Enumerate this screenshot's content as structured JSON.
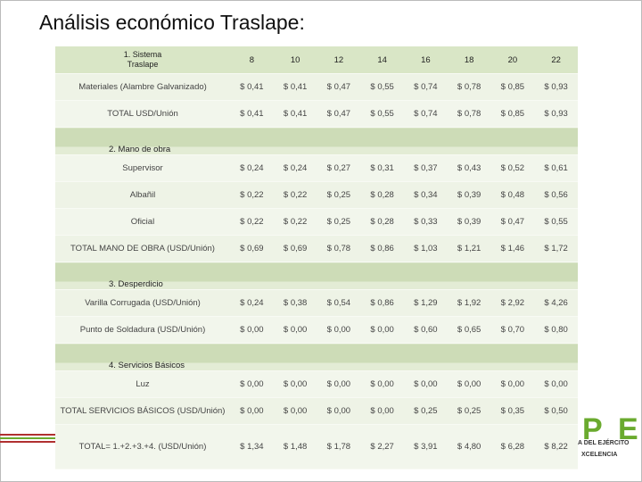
{
  "title": "Análisis económico Traslape:",
  "table": {
    "header": [
      "1. Sistema Traslape",
      "8",
      "10",
      "12",
      "14",
      "16",
      "18",
      "20",
      "22"
    ],
    "rows": [
      {
        "label": "Materiales (Alambre Galvanizado)",
        "cells": [
          "$ 0,41",
          "$ 0,41",
          "$ 0,47",
          "$ 0,55",
          "$ 0,74",
          "$ 0,78",
          "$ 0,85",
          "$ 0,93"
        ]
      },
      {
        "label": "TOTAL USD/Unión",
        "cells": [
          "$ 0,41",
          "$ 0,41",
          "$ 0,47",
          "$ 0,55",
          "$ 0,74",
          "$ 0,78",
          "$ 0,85",
          "$ 0,93"
        ]
      },
      {
        "section": "2. Mano de obra"
      },
      {
        "label": "Supervisor",
        "cells": [
          "$ 0,24",
          "$ 0,24",
          "$ 0,27",
          "$ 0,31",
          "$ 0,37",
          "$ 0,43",
          "$ 0,52",
          "$ 0,61"
        ]
      },
      {
        "label": "Albañil",
        "cells": [
          "$ 0,22",
          "$ 0,22",
          "$ 0,25",
          "$ 0,28",
          "$ 0,34",
          "$ 0,39",
          "$ 0,48",
          "$ 0,56"
        ]
      },
      {
        "label": "Oficial",
        "cells": [
          "$ 0,22",
          "$ 0,22",
          "$ 0,25",
          "$ 0,28",
          "$ 0,33",
          "$ 0,39",
          "$ 0,47",
          "$ 0,55"
        ]
      },
      {
        "label": "TOTAL MANO DE OBRA (USD/Unión)",
        "cells": [
          "$ 0,69",
          "$ 0,69",
          "$ 0,78",
          "$ 0,86",
          "$ 1,03",
          "$ 1,21",
          "$ 1,46",
          "$ 1,72"
        ]
      },
      {
        "section": "3. Desperdicio"
      },
      {
        "label": "Varilla Corrugada (USD/Unión)",
        "cells": [
          "$ 0,24",
          "$ 0,38",
          "$ 0,54",
          "$ 0,86",
          "$ 1,29",
          "$ 1,92",
          "$ 2,92",
          "$ 4,26"
        ]
      },
      {
        "label": "Punto de Soldadura (USD/Unión)",
        "cells": [
          "$ 0,00",
          "$ 0,00",
          "$ 0,00",
          "$ 0,00",
          "$ 0,60",
          "$ 0,65",
          "$ 0,70",
          "$ 0,80"
        ]
      },
      {
        "section": "4. Servicios Básicos"
      },
      {
        "label": "Luz",
        "cells": [
          "$ 0,00",
          "$ 0,00",
          "$ 0,00",
          "$ 0,00",
          "$ 0,00",
          "$ 0,00",
          "$ 0,00",
          "$ 0,00"
        ]
      },
      {
        "label": "TOTAL SERVICIOS BÁSICOS (USD/Unión)",
        "cells": [
          "$ 0,00",
          "$ 0,00",
          "$ 0,00",
          "$ 0,00",
          "$ 0,25",
          "$ 0,25",
          "$ 0,35",
          "$ 0,50"
        ]
      },
      {
        "label": "TOTAL= 1.+2.+3.+4. (USD/Unión)",
        "cells": [
          "$ 1,34",
          "$ 1,48",
          "$ 1,78",
          "$ 2,27",
          "$ 3,91",
          "$ 4,80",
          "$ 6,28",
          "$ 8,22"
        ]
      }
    ]
  },
  "logo": {
    "letters": [
      "P",
      "E"
    ],
    "line1": "A DEL EJÉRCITO",
    "line2": "XCELENCIA"
  }
}
